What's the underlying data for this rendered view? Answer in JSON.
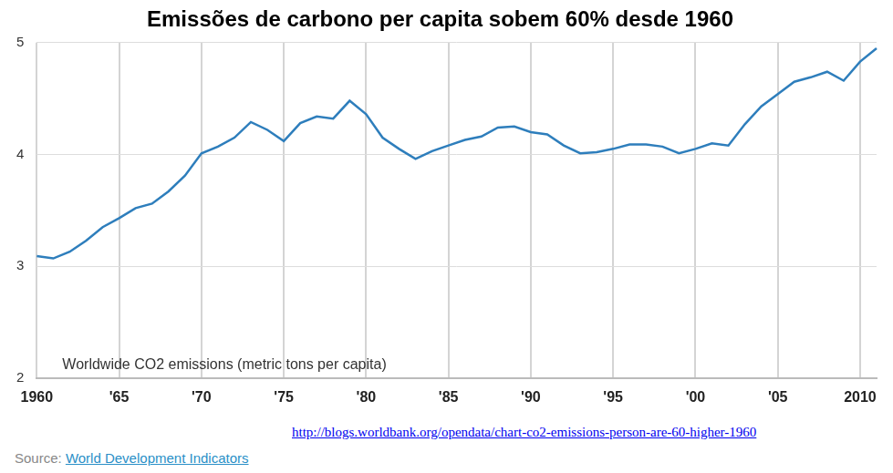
{
  "chart_data": {
    "type": "line",
    "title": "Emissões de carbono per capita sobem 60% desde 1960",
    "annotation": "Worldwide CO2 emissions (metric tons per capita)",
    "url": "http://blogs.worldbank.org/opendata/chart-co2-emissions-person-are-60-higher-1960",
    "source": {
      "label": "Source:",
      "text": "World Development Indicators"
    },
    "categories": [
      "1960",
      null,
      null,
      null,
      null,
      "'65",
      null,
      null,
      null,
      null,
      "'70",
      null,
      null,
      null,
      null,
      "'75",
      null,
      null,
      null,
      null,
      "'80",
      null,
      null,
      null,
      null,
      "'85",
      null,
      null,
      null,
      null,
      "'90",
      null,
      null,
      null,
      null,
      "'95",
      null,
      null,
      null,
      null,
      "'00",
      null,
      null,
      null,
      null,
      "'05",
      null,
      null,
      null,
      null,
      "2010",
      null
    ],
    "values": [
      3.09,
      3.07,
      3.13,
      3.23,
      3.35,
      3.43,
      3.52,
      3.56,
      3.67,
      3.81,
      4.01,
      4.07,
      4.15,
      4.29,
      4.22,
      4.12,
      4.28,
      4.34,
      4.32,
      4.48,
      4.36,
      4.15,
      4.05,
      3.96,
      4.03,
      4.08,
      4.13,
      4.16,
      4.24,
      4.25,
      4.2,
      4.18,
      4.08,
      4.01,
      4.02,
      4.05,
      4.09,
      4.09,
      4.07,
      4.01,
      4.05,
      4.1,
      4.08,
      4.27,
      4.43,
      4.54,
      4.65,
      4.69,
      4.74,
      4.66,
      4.83,
      4.95
    ],
    "color": "#2e7ebc",
    "ylim": [
      2,
      5
    ],
    "yticks": [
      2,
      3,
      4,
      5
    ],
    "grid": true
  }
}
